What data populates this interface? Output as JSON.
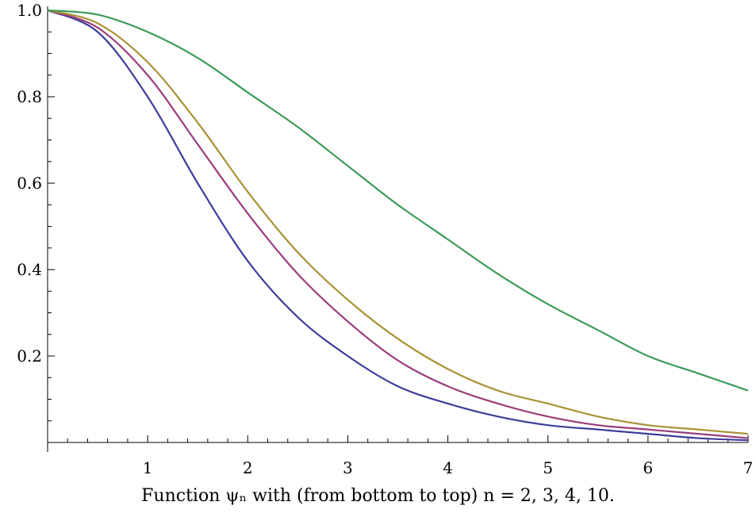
{
  "chart_data": {
    "type": "line",
    "title": "",
    "caption": "Function ψₙ with (from bottom to top) n = 2, 3, 4, 10.",
    "xlabel": "",
    "ylabel": "",
    "xlim": [
      0,
      7
    ],
    "ylim": [
      0,
      1.0
    ],
    "x_ticks": [
      1,
      2,
      3,
      4,
      5,
      6,
      7
    ],
    "y_ticks": [
      0.2,
      0.4,
      0.6,
      0.8,
      1.0
    ],
    "y_tick_labels": [
      "0.2",
      "0.4",
      "0.6",
      "0.8",
      "1.0"
    ],
    "grid": false,
    "x": [
      0,
      0.5,
      1,
      1.5,
      2,
      2.5,
      3,
      3.5,
      4,
      4.5,
      5,
      5.5,
      6,
      6.5,
      7
    ],
    "series": [
      {
        "n": 2,
        "color": "#3d3d9b",
        "values": [
          1.0,
          0.95,
          0.8,
          0.6,
          0.42,
          0.29,
          0.2,
          0.13,
          0.09,
          0.06,
          0.04,
          0.03,
          0.02,
          0.01,
          0.005
        ]
      },
      {
        "n": 3,
        "color": "#9b3d7b",
        "values": [
          1.0,
          0.96,
          0.85,
          0.69,
          0.53,
          0.39,
          0.28,
          0.19,
          0.13,
          0.09,
          0.06,
          0.04,
          0.03,
          0.02,
          0.01
        ]
      },
      {
        "n": 4,
        "color": "#a89236",
        "values": [
          1.0,
          0.97,
          0.88,
          0.74,
          0.58,
          0.44,
          0.33,
          0.24,
          0.17,
          0.12,
          0.09,
          0.06,
          0.04,
          0.03,
          0.02
        ]
      },
      {
        "n": 10,
        "color": "#3d9b5a",
        "values": [
          1.0,
          0.99,
          0.95,
          0.89,
          0.81,
          0.73,
          0.64,
          0.55,
          0.47,
          0.39,
          0.32,
          0.26,
          0.2,
          0.16,
          0.12
        ]
      }
    ]
  }
}
